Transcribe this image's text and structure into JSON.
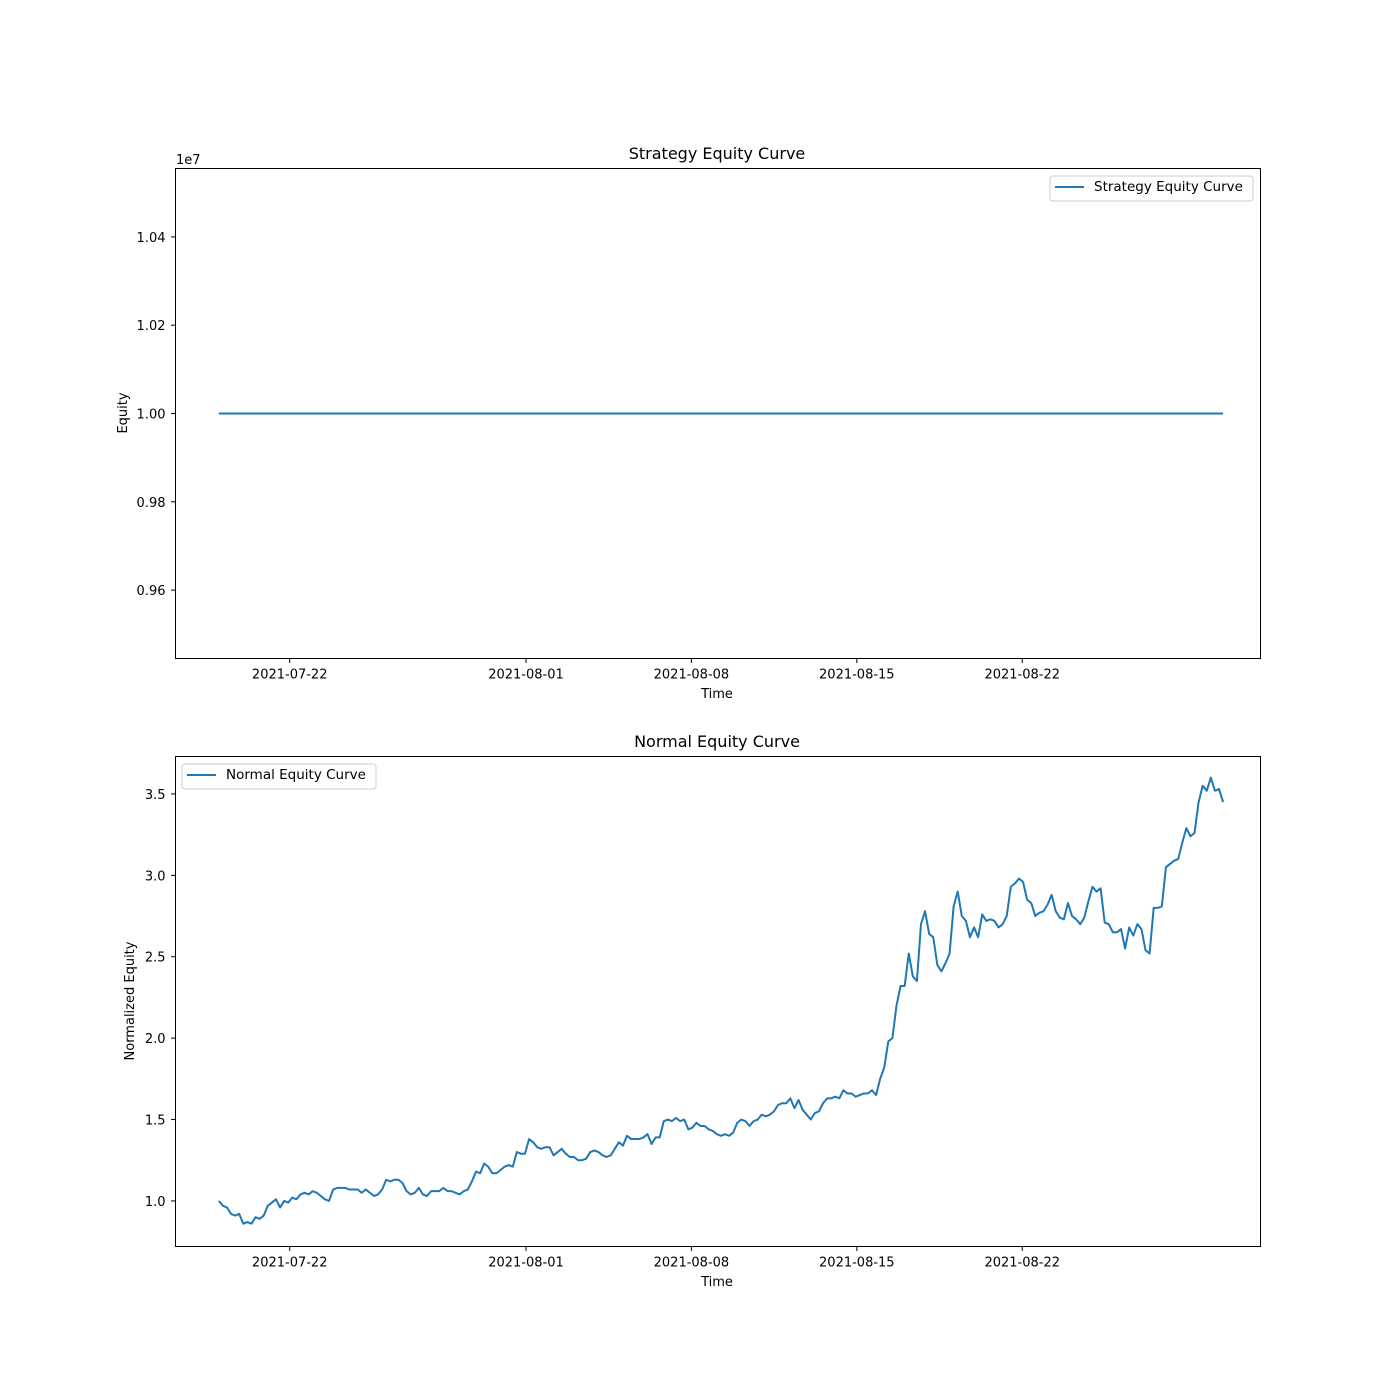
{
  "chart_data": [
    {
      "type": "line",
      "title": "Strategy Equity Curve",
      "xlabel": "Time",
      "ylabel": "Equity",
      "y_offset_label": "1e7",
      "xlim": [
        "2021-07-17T04:00",
        "2021-09-01T02:00"
      ],
      "ylim": [
        0.9445,
        1.0555
      ],
      "x_ticks": [
        "2021-07-22",
        "2021-08-01",
        "2021-08-08",
        "2021-08-15",
        "2021-08-22"
      ],
      "y_ticks": [
        0.96,
        0.98,
        1.0,
        1.02,
        1.04
      ],
      "y_tick_labels": [
        "0.96",
        "0.98",
        "1.00",
        "1.02",
        "1.04"
      ],
      "legend_position": "upper right",
      "grid": false,
      "series": [
        {
          "name": "Strategy Equity Curve",
          "color": "#1f77b4",
          "x_start": "2021-07-19T00:00",
          "x_end": "2021-08-30T12:00",
          "values": [
            1.0,
            1.0
          ]
        }
      ]
    },
    {
      "type": "line",
      "title": "Normal Equity Curve",
      "xlabel": "Time",
      "ylabel": "Normalized Equity",
      "xlim": [
        "2021-07-17T04:00",
        "2021-09-01T02:00"
      ],
      "ylim": [
        0.72,
        3.73
      ],
      "x_ticks": [
        "2021-07-22",
        "2021-08-01",
        "2021-08-08",
        "2021-08-15",
        "2021-08-22"
      ],
      "y_ticks": [
        1.0,
        1.5,
        2.0,
        2.5,
        3.0,
        3.5
      ],
      "y_tick_labels": [
        "1.0",
        "1.5",
        "2.0",
        "2.5",
        "3.0",
        "3.5"
      ],
      "legend_position": "upper left",
      "grid": false,
      "series": [
        {
          "name": "Normal Equity Curve",
          "color": "#1f77b4",
          "x_start": "2021-07-19T00:00",
          "x_end": "2021-08-30T12:00",
          "values": [
            1.0,
            0.97,
            0.96,
            0.92,
            0.91,
            0.92,
            0.86,
            0.87,
            0.86,
            0.9,
            0.89,
            0.91,
            0.97,
            0.99,
            1.01,
            0.96,
            1.0,
            0.99,
            1.02,
            1.01,
            1.04,
            1.05,
            1.04,
            1.06,
            1.05,
            1.03,
            1.01,
            1.0,
            1.07,
            1.08,
            1.08,
            1.08,
            1.07,
            1.07,
            1.07,
            1.05,
            1.07,
            1.05,
            1.03,
            1.04,
            1.07,
            1.13,
            1.12,
            1.13,
            1.13,
            1.11,
            1.06,
            1.04,
            1.05,
            1.08,
            1.04,
            1.03,
            1.06,
            1.06,
            1.06,
            1.08,
            1.06,
            1.06,
            1.05,
            1.04,
            1.06,
            1.07,
            1.12,
            1.18,
            1.17,
            1.23,
            1.21,
            1.17,
            1.17,
            1.19,
            1.21,
            1.22,
            1.21,
            1.3,
            1.29,
            1.29,
            1.38,
            1.36,
            1.33,
            1.32,
            1.33,
            1.33,
            1.28,
            1.3,
            1.32,
            1.29,
            1.27,
            1.27,
            1.25,
            1.25,
            1.26,
            1.3,
            1.31,
            1.3,
            1.28,
            1.27,
            1.28,
            1.32,
            1.36,
            1.34,
            1.4,
            1.38,
            1.38,
            1.38,
            1.39,
            1.41,
            1.35,
            1.39,
            1.39,
            1.49,
            1.5,
            1.49,
            1.51,
            1.49,
            1.5,
            1.44,
            1.45,
            1.48,
            1.46,
            1.46,
            1.44,
            1.43,
            1.41,
            1.4,
            1.41,
            1.4,
            1.42,
            1.48,
            1.5,
            1.49,
            1.46,
            1.49,
            1.5,
            1.53,
            1.52,
            1.53,
            1.55,
            1.59,
            1.6,
            1.6,
            1.63,
            1.57,
            1.62,
            1.56,
            1.53,
            1.5,
            1.54,
            1.55,
            1.6,
            1.63,
            1.63,
            1.64,
            1.63,
            1.68,
            1.66,
            1.66,
            1.64,
            1.65,
            1.66,
            1.66,
            1.68,
            1.65,
            1.75,
            1.82,
            1.98,
            2.0,
            2.2,
            2.32,
            2.32,
            2.52,
            2.38,
            2.35,
            2.7,
            2.78,
            2.64,
            2.62,
            2.45,
            2.41,
            2.46,
            2.52,
            2.81,
            2.9,
            2.75,
            2.72,
            2.62,
            2.68,
            2.62,
            2.76,
            2.72,
            2.73,
            2.72,
            2.68,
            2.7,
            2.75,
            2.93,
            2.95,
            2.98,
            2.96,
            2.85,
            2.83,
            2.75,
            2.77,
            2.78,
            2.82,
            2.88,
            2.78,
            2.74,
            2.73,
            2.83,
            2.75,
            2.73,
            2.7,
            2.74,
            2.84,
            2.93,
            2.9,
            2.92,
            2.71,
            2.7,
            2.65,
            2.65,
            2.67,
            2.55,
            2.68,
            2.63,
            2.7,
            2.67,
            2.54,
            2.52,
            2.8,
            2.8,
            2.81,
            3.05,
            3.07,
            3.09,
            3.1,
            3.2,
            3.29,
            3.24,
            3.26,
            3.45,
            3.55,
            3.52,
            3.6,
            3.52,
            3.53,
            3.45
          ]
        }
      ]
    }
  ]
}
